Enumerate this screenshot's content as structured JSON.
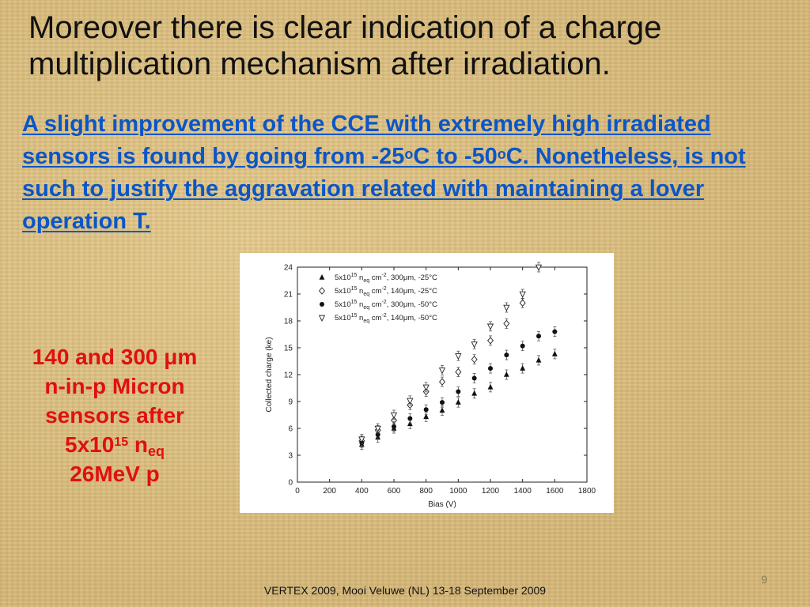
{
  "slide": {
    "title": "Moreover there is clear indication of a charge multiplication mechanism after irradiation.",
    "subtitle_parts": {
      "p1": "A slight improvement of the CCE with extremely high irradiated sensors is found by going from -25",
      "sup1": "o",
      "p2": "C to -50",
      "sup2": "o",
      "p3": "C. Nonetheless, is not such to justify the aggravation related with maintaining a lover operation T."
    },
    "side_note": {
      "line1_a": "140 and 300 ",
      "line1_mu": "μ",
      "line1_b": "m",
      "line2": "n-in-p Micron",
      "line3": "sensors after",
      "line4_a": "5x10",
      "line4_sup": "15",
      "line4_b": " n",
      "line4_sub": "eq",
      "line5": "26MeV p"
    },
    "page_number": "9",
    "footer": "VERTEX 2009, Mooi Veluwe (NL) 13-18 September 2009",
    "colors": {
      "subtitle": "#0a56c8",
      "side_note": "#e01010"
    }
  },
  "chart_data": {
    "type": "scatter",
    "xlabel": "Bias (V)",
    "ylabel": "Collected charge (ke)",
    "xlim": [
      0,
      1800
    ],
    "ylim": [
      0,
      24
    ],
    "xticks": [
      0,
      200,
      400,
      600,
      800,
      1000,
      1200,
      1400,
      1600,
      1800
    ],
    "yticks": [
      0,
      3,
      6,
      9,
      12,
      15,
      18,
      21,
      24
    ],
    "legend_position": "top-left",
    "series": [
      {
        "name": "5x10^15 n_eq cm^-2, 300μm, -25°C",
        "marker": "triangle-up-filled",
        "x": [
          400,
          500,
          600,
          700,
          800,
          900,
          1000,
          1100,
          1200,
          1300,
          1400,
          1500,
          1600
        ],
        "y": [
          4.2,
          5.0,
          6.0,
          6.5,
          7.3,
          8.0,
          8.9,
          9.9,
          10.6,
          12.0,
          12.7,
          13.6,
          14.3
        ]
      },
      {
        "name": "5x10^15 n_eq cm^-2, 140μm, -25°C",
        "marker": "diamond-open",
        "x": [
          400,
          500,
          600,
          700,
          800,
          900,
          1000,
          1100,
          1200,
          1300,
          1400
        ],
        "y": [
          4.6,
          5.8,
          6.9,
          8.6,
          10.1,
          11.2,
          12.3,
          13.7,
          15.8,
          17.7,
          20.0
        ]
      },
      {
        "name": "5x10^15 n_eq cm^-2, 300μm, -50°C",
        "marker": "circle-filled",
        "x": [
          400,
          500,
          600,
          700,
          800,
          900,
          1000,
          1100,
          1200,
          1300,
          1400,
          1500,
          1600
        ],
        "y": [
          4.4,
          5.3,
          6.2,
          7.1,
          8.1,
          8.9,
          10.1,
          11.6,
          12.7,
          14.2,
          15.2,
          16.3,
          16.8
        ]
      },
      {
        "name": "5x10^15 n_eq cm^-2, 140μm, -50°C",
        "marker": "triangle-down-open",
        "x": [
          400,
          500,
          600,
          700,
          800,
          900,
          1000,
          1100,
          1200,
          1300,
          1400,
          1500
        ],
        "y": [
          4.8,
          6.0,
          7.5,
          9.1,
          10.6,
          12.5,
          14.1,
          15.4,
          17.4,
          19.5,
          21.0,
          24.0
        ]
      }
    ]
  }
}
